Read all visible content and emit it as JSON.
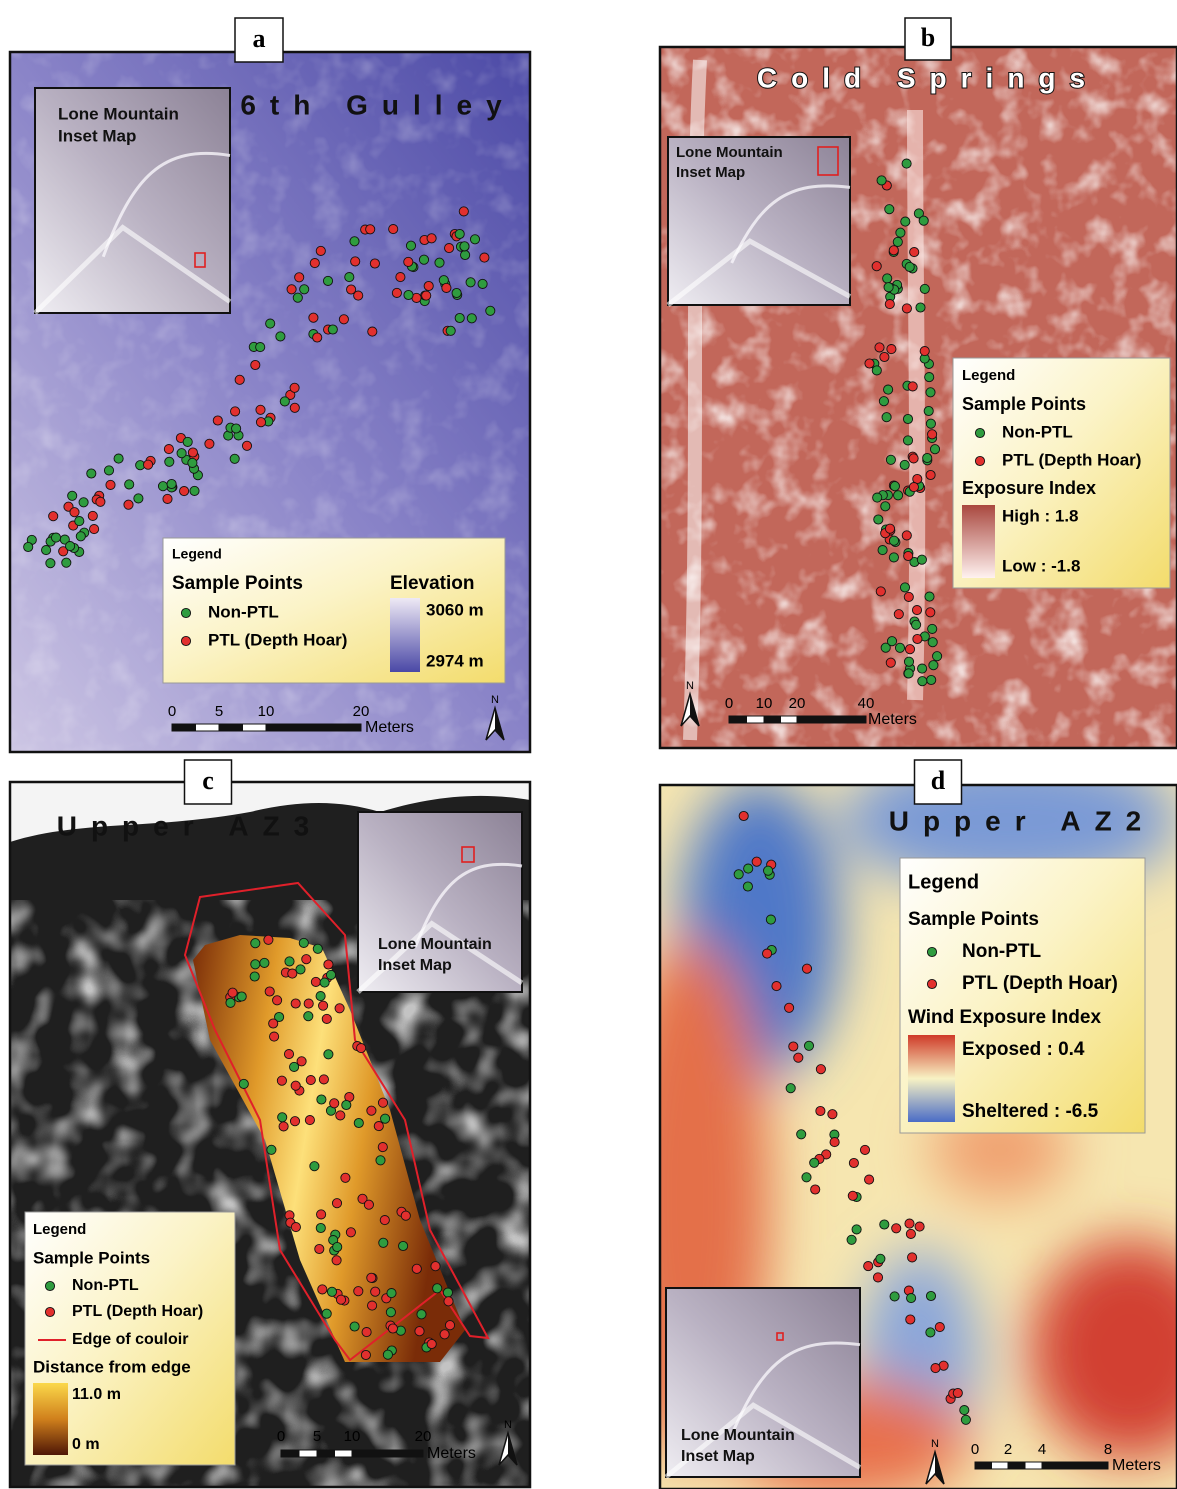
{
  "panels": [
    {
      "label": "a",
      "title": "6th Gulley",
      "inset": [
        "Lone Mountain",
        "Inset Map"
      ],
      "legend": {
        "title": "Legend",
        "group": "Sample Points",
        "items": [
          "Non-PTL",
          "PTL (Depth Hoar)"
        ],
        "ramp_title": "Elevation",
        "ramp_high": "3060 m",
        "ramp_low": "2974 m"
      },
      "scale": {
        "ticks": [
          "0",
          "5",
          "10",
          "20"
        ],
        "unit": "Meters"
      },
      "north": "N"
    },
    {
      "label": "b",
      "title": "Cold Springs",
      "inset": [
        "Lone Mountain",
        "Inset Map"
      ],
      "legend": {
        "title": "Legend",
        "group": "Sample Points",
        "items": [
          "Non-PTL",
          "PTL (Depth Hoar)"
        ],
        "ramp_title": "Exposure Index",
        "ramp_high": "High : 1.8",
        "ramp_low": "Low : -1.8"
      },
      "scale": {
        "ticks": [
          "0",
          "10",
          "20",
          "40"
        ],
        "unit": "Meters"
      },
      "north": "N"
    },
    {
      "label": "c",
      "title": "Upper AZ3",
      "inset": [
        "Lone Mountain",
        "Inset Map"
      ],
      "legend": {
        "title": "Legend",
        "group": "Sample Points",
        "items": [
          "Non-PTL",
          "PTL (Depth Hoar)",
          "Edge of couloir"
        ],
        "ramp_title": "Distance from edge",
        "ramp_high": "11.0 m",
        "ramp_low": "0 m"
      },
      "scale": {
        "ticks": [
          "0",
          "5",
          "10",
          "20"
        ],
        "unit": "Meters"
      },
      "north": "N"
    },
    {
      "label": "d",
      "title": "Upper AZ2",
      "inset": [
        "Lone Mountain",
        "Inset Map"
      ],
      "legend": {
        "title": "Legend",
        "group": "Sample Points",
        "items": [
          "Non-PTL",
          "PTL (Depth Hoar)"
        ],
        "ramp_title": "Wind Exposure Index",
        "ramp_high": "Exposed : 0.4",
        "ramp_low": "Sheltered : -6.5"
      },
      "scale": {
        "ticks": [
          "0",
          "2",
          "4",
          "8"
        ],
        "unit": "Meters"
      },
      "north": "N"
    }
  ]
}
